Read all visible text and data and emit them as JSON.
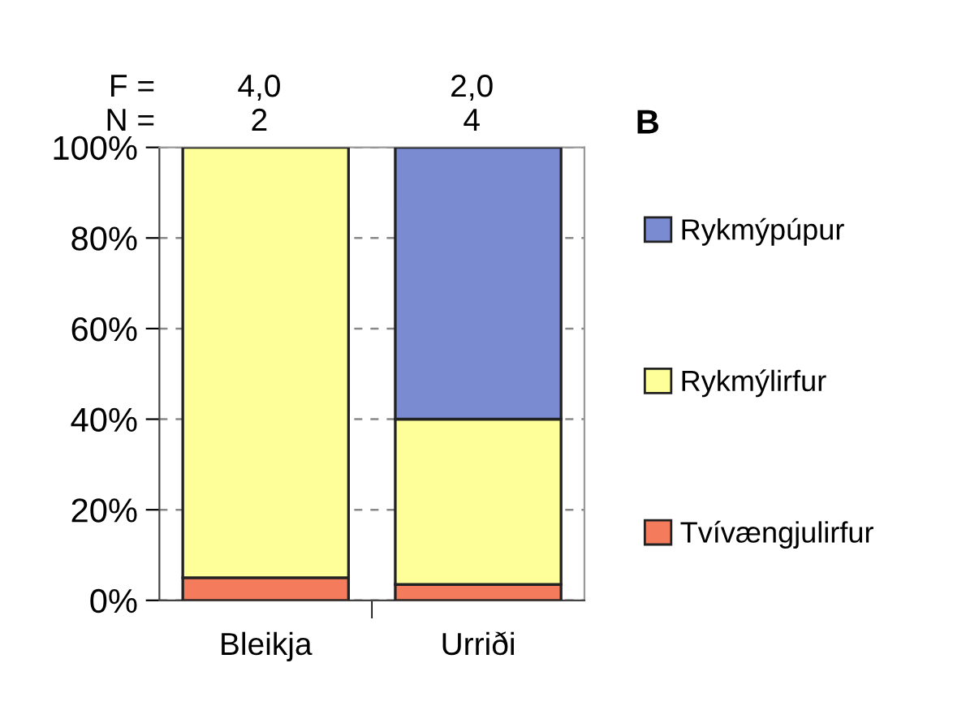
{
  "chart_data": {
    "type": "bar",
    "stacked": true,
    "categories": [
      "Bleikja",
      "Urriði"
    ],
    "series": [
      {
        "name": "Tvívængjulirfur",
        "color": "#f47c5c",
        "values": [
          5,
          3.5
        ]
      },
      {
        "name": "Rykmýlirfur",
        "color": "#ffff99",
        "values": [
          95,
          36.5
        ]
      },
      {
        "name": "Rykmýpúpur",
        "color": "#7b8bd2",
        "values": [
          null,
          60
        ]
      }
    ],
    "ylim": [
      0,
      100
    ],
    "yticks": [
      {
        "value": 0,
        "label": "0%"
      },
      {
        "value": 20,
        "label": "20%"
      },
      {
        "value": 40,
        "label": "40%"
      },
      {
        "value": 60,
        "label": "60%"
      },
      {
        "value": 80,
        "label": "80%"
      },
      {
        "value": 100,
        "label": "100%"
      }
    ],
    "grid": "y",
    "legend": "right",
    "annotations": [
      "F =",
      "4,0",
      "2,0",
      "N =",
      "2",
      "4",
      "B"
    ]
  }
}
